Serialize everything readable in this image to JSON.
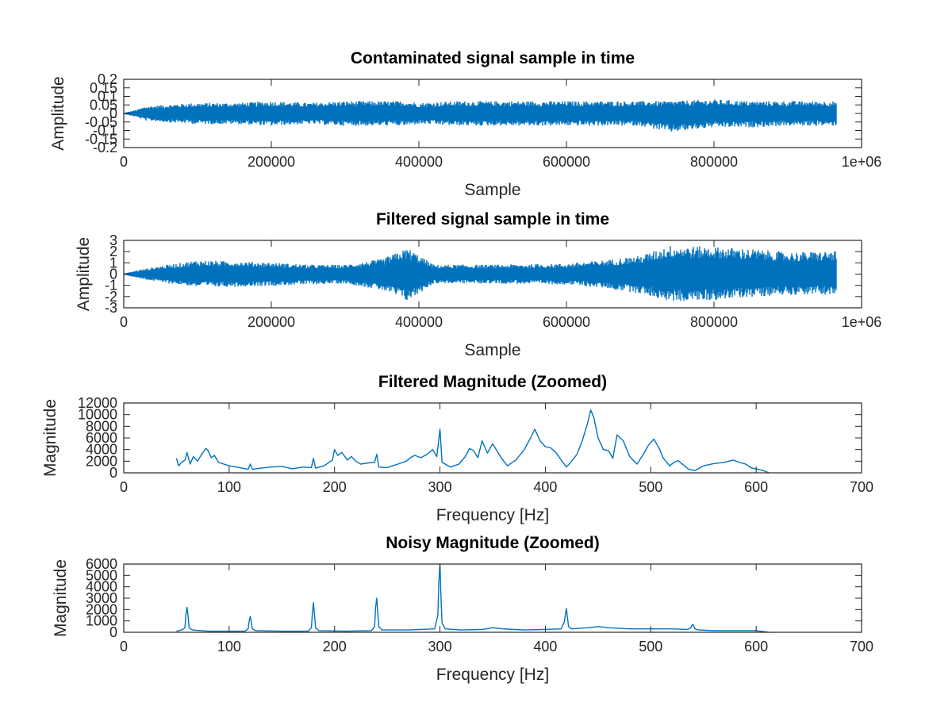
{
  "figure": {
    "background": "#ffffff",
    "line_color": "#0072bd"
  },
  "chart_data": [
    {
      "type": "line",
      "title": "Contaminated signal sample in time",
      "xlabel": "Sample",
      "ylabel": "Amplitude",
      "xlim": [
        0,
        1000000
      ],
      "ylim": [
        -0.2,
        0.2
      ],
      "xticks": [
        0,
        200000,
        400000,
        600000,
        800000,
        1000000
      ],
      "xtick_labels": [
        "0",
        "200000",
        "400000",
        "600000",
        "800000",
        "1e+06"
      ],
      "yticks": [
        -0.2,
        -0.15,
        -0.1,
        -0.05,
        0,
        0.05,
        0.1,
        0.15,
        0.2
      ],
      "ytick_labels": [
        "-0.2",
        "-0.15",
        "-0.1",
        "-0.05",
        "0",
        "0.05",
        "0.1",
        "0.15",
        "0.2"
      ],
      "grid": false,
      "series": [
        {
          "envelope": {
            "x": [
              0,
              18000,
              30000,
              60000,
              100000,
              150000,
              200000,
              250000,
              300000,
              350000,
              385000,
              400000,
              450000,
              500000,
              550000,
              600000,
              650000,
              700000,
              740000,
              800000,
              850000,
              900000,
              966000
            ],
            "upper": [
              0,
              0.02,
              0.04,
              0.05,
              0.06,
              0.06,
              0.07,
              0.06,
              0.07,
              0.07,
              0.07,
              0.06,
              0.07,
              0.07,
              0.07,
              0.07,
              0.07,
              0.07,
              0.07,
              0.08,
              0.07,
              0.07,
              0.07
            ],
            "lower": [
              0,
              -0.02,
              -0.04,
              -0.05,
              -0.06,
              -0.06,
              -0.07,
              -0.06,
              -0.07,
              -0.07,
              -0.07,
              -0.06,
              -0.07,
              -0.07,
              -0.07,
              -0.07,
              -0.07,
              -0.07,
              -0.11,
              -0.08,
              -0.08,
              -0.07,
              -0.07
            ]
          }
        }
      ]
    },
    {
      "type": "line",
      "title": "Filtered signal sample in time",
      "xlabel": "Sample",
      "ylabel": "Amplitude",
      "xlim": [
        0,
        1000000
      ],
      "ylim": [
        -3,
        3
      ],
      "xticks": [
        0,
        200000,
        400000,
        600000,
        800000,
        1000000
      ],
      "xtick_labels": [
        "0",
        "200000",
        "400000",
        "600000",
        "800000",
        "1e+06"
      ],
      "yticks": [
        -3,
        -2,
        -1,
        0,
        1,
        2,
        3
      ],
      "ytick_labels": [
        "-3",
        "-2",
        "-1",
        "0",
        "1",
        "2",
        "3"
      ],
      "grid": false,
      "series": [
        {
          "envelope": {
            "x": [
              0,
              18000,
              50000,
              100000,
              150000,
              200000,
              250000,
              300000,
              350000,
              385000,
              420000,
              500000,
              600000,
              650000,
              700000,
              740000,
              800000,
              850000,
              900000,
              966000
            ],
            "upper": [
              0,
              0.3,
              0.7,
              1.2,
              1.1,
              1.0,
              0.8,
              0.8,
              1.3,
              2.3,
              0.8,
              0.8,
              0.9,
              1.2,
              1.6,
              2.5,
              2.4,
              2.2,
              1.9,
              2.0
            ],
            "lower": [
              0,
              -0.3,
              -0.7,
              -1.1,
              -1.1,
              -1.0,
              -0.9,
              -0.8,
              -1.4,
              -2.4,
              -0.8,
              -0.8,
              -0.9,
              -1.2,
              -1.7,
              -2.4,
              -2.3,
              -2.0,
              -1.8,
              -1.8
            ]
          }
        }
      ]
    },
    {
      "type": "line",
      "title": "Filtered Magnitude (Zoomed)",
      "xlabel": "Frequency [Hz]",
      "ylabel": "Magnitude",
      "xlim": [
        0,
        700
      ],
      "ylim": [
        0,
        12000
      ],
      "xticks": [
        0,
        100,
        200,
        300,
        400,
        500,
        600,
        700
      ],
      "xtick_labels": [
        "0",
        "100",
        "200",
        "300",
        "400",
        "500",
        "600",
        "700"
      ],
      "yticks": [
        0,
        2000,
        4000,
        6000,
        8000,
        10000,
        12000
      ],
      "ytick_labels": [
        "0",
        "2000",
        "4000",
        "6000",
        "8000",
        "10000",
        "12000"
      ],
      "grid": false,
      "series": [
        {
          "x": [
            50,
            52,
            55,
            58,
            60,
            63,
            66,
            70,
            74,
            78,
            80,
            83,
            86,
            90,
            95,
            100,
            110,
            118,
            120,
            122,
            130,
            140,
            150,
            160,
            170,
            178,
            180,
            182,
            190,
            198,
            200,
            203,
            207,
            212,
            216,
            220,
            225,
            232,
            238,
            240,
            242,
            250,
            260,
            268,
            272,
            276,
            282,
            288,
            293,
            297,
            300,
            302,
            310,
            318,
            324,
            328,
            332,
            336,
            340,
            345,
            350,
            354,
            358,
            364,
            372,
            380,
            386,
            390,
            395,
            400,
            405,
            410,
            415,
            420,
            425,
            430,
            435,
            440,
            443,
            446,
            450,
            455,
            460,
            464,
            468,
            474,
            480,
            487,
            493,
            498,
            503,
            508,
            512,
            518,
            522,
            526,
            530,
            536,
            542,
            550,
            560,
            570,
            578,
            584,
            590,
            596,
            602,
            608,
            612
          ],
          "y": [
            2500,
            1200,
            1800,
            2200,
            3500,
            1500,
            2800,
            2000,
            3200,
            4200,
            3800,
            2600,
            3000,
            1800,
            1500,
            1200,
            900,
            600,
            1500,
            600,
            800,
            1000,
            1100,
            700,
            1000,
            900,
            2500,
            800,
            1200,
            2200,
            4000,
            3000,
            3500,
            2200,
            2800,
            2000,
            1500,
            1700,
            1800,
            3200,
            1000,
            900,
            1500,
            2000,
            2600,
            3000,
            2600,
            3200,
            4000,
            2800,
            7500,
            1800,
            1000,
            1500,
            2800,
            4200,
            3800,
            2600,
            5500,
            3400,
            5000,
            3800,
            2600,
            1200,
            2200,
            4000,
            6000,
            7500,
            5500,
            4500,
            4300,
            3500,
            2200,
            1000,
            2000,
            3200,
            5500,
            8500,
            10800,
            9500,
            6000,
            4000,
            3800,
            2500,
            6500,
            5500,
            2800,
            1500,
            3200,
            4800,
            5800,
            4200,
            2500,
            1200,
            1800,
            2100,
            1500,
            600,
            400,
            1200,
            1600,
            1800,
            2200,
            1800,
            1500,
            800,
            600,
            300,
            0
          ]
        }
      ]
    },
    {
      "type": "line",
      "title": "Noisy Magnitude (Zoomed)",
      "xlabel": "Frequency [Hz]",
      "ylabel": "Magnitude",
      "xlim": [
        0,
        700
      ],
      "ylim": [
        0,
        6000
      ],
      "xticks": [
        0,
        100,
        200,
        300,
        400,
        500,
        600,
        700
      ],
      "xtick_labels": [
        "0",
        "100",
        "200",
        "300",
        "400",
        "500",
        "600",
        "700"
      ],
      "yticks": [
        0,
        1000,
        2000,
        3000,
        4000,
        5000,
        6000
      ],
      "ytick_labels": [
        "0",
        "1000",
        "2000",
        "3000",
        "4000",
        "5000",
        "6000"
      ],
      "grid": false,
      "series": [
        {
          "x": [
            50,
            55,
            58,
            59,
            60,
            61,
            62,
            65,
            80,
            100,
            115,
            118,
            119,
            120,
            121,
            122,
            125,
            150,
            175,
            178,
            179,
            180,
            181,
            182,
            185,
            210,
            235,
            238,
            239,
            240,
            241,
            242,
            245,
            270,
            295,
            298,
            299,
            300,
            301,
            302,
            305,
            320,
            340,
            350,
            360,
            380,
            400,
            415,
            418,
            419,
            420,
            421,
            422,
            425,
            440,
            450,
            460,
            480,
            500,
            520,
            535,
            538,
            539,
            540,
            541,
            542,
            545,
            560,
            580,
            600,
            612
          ],
          "y": [
            100,
            200,
            400,
            1600,
            2200,
            1500,
            400,
            200,
            100,
            100,
            100,
            300,
            1000,
            1400,
            900,
            300,
            150,
            100,
            100,
            400,
            1700,
            2600,
            1500,
            400,
            150,
            100,
            150,
            500,
            2200,
            3000,
            1700,
            500,
            200,
            200,
            300,
            1500,
            4500,
            6000,
            3000,
            800,
            300,
            200,
            250,
            400,
            300,
            200,
            250,
            300,
            900,
            1600,
            2100,
            1300,
            500,
            300,
            400,
            500,
            400,
            300,
            300,
            300,
            250,
            400,
            600,
            700,
            500,
            300,
            200,
            150,
            150,
            150,
            0
          ]
        }
      ]
    }
  ]
}
